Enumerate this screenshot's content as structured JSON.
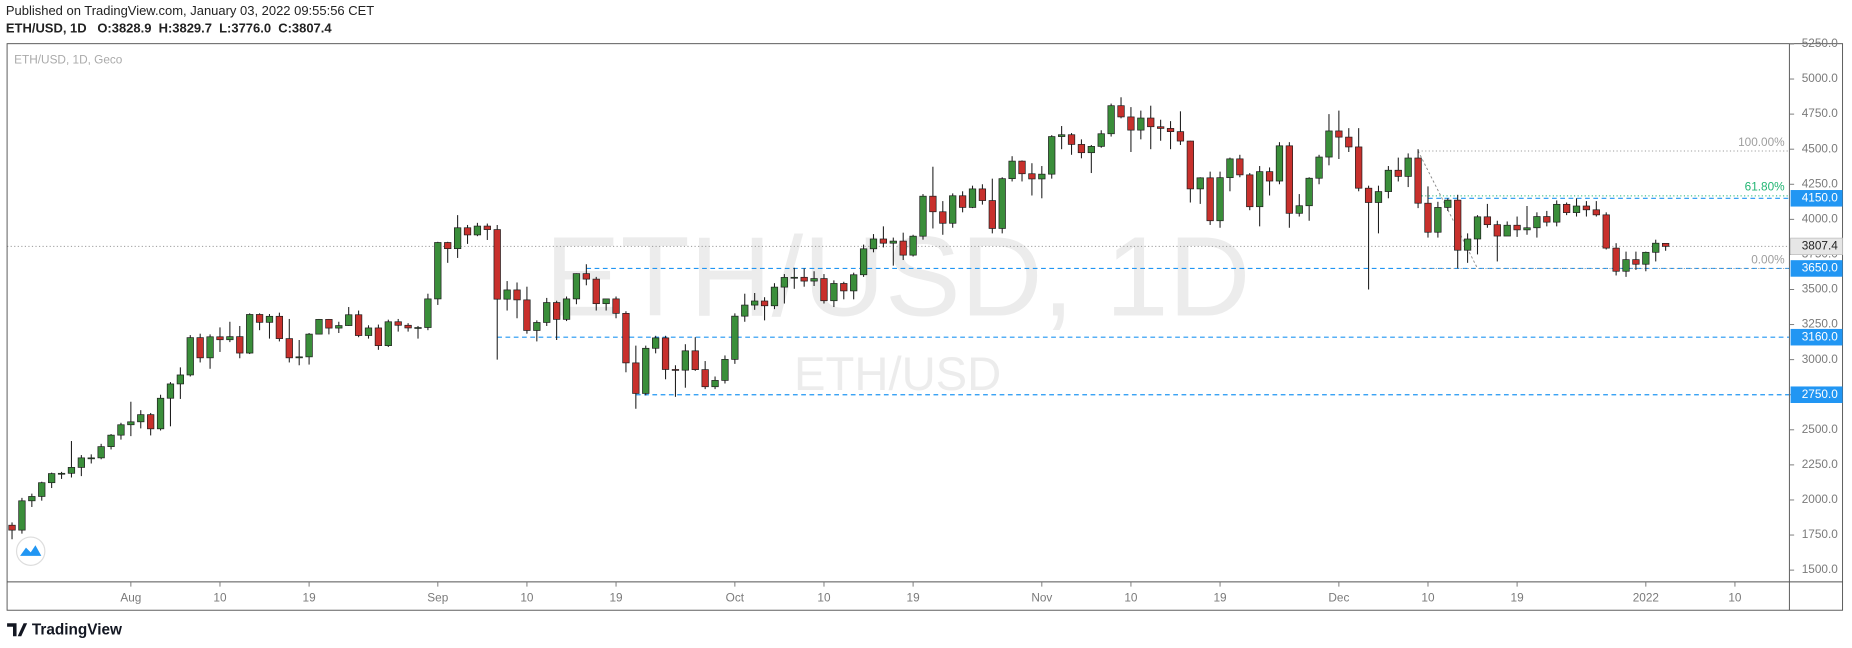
{
  "header": {
    "published": "Published on TradingView.com, January 03, 2022 09:55:56 CET",
    "symbol": "ETH/USD, 1D",
    "ohlc": [
      {
        "key": "O:",
        "value": "3828.9"
      },
      {
        "key": "H:",
        "value": "3829.7"
      },
      {
        "key": "L:",
        "value": "3776.0"
      },
      {
        "key": "C:",
        "value": "3807.4"
      }
    ]
  },
  "chart_data": {
    "type": "candlestick",
    "legend": "ETH/USD, 1D, Geco",
    "watermark": "ETH/USD, 1D",
    "watermark_sub": "ETH/USD",
    "open": [
      1820,
      1785,
      1994,
      2025,
      2123,
      2188,
      2190,
      2232,
      2300,
      2300,
      2380,
      2462,
      2536,
      2557,
      2608,
      2507,
      2725,
      2827,
      2891,
      3157,
      3013,
      3163,
      3142,
      3164,
      3047,
      3322,
      3266,
      3309,
      3150,
      3013,
      3020,
      3182,
      3287,
      3225,
      3243,
      3320,
      3172,
      3226,
      3100,
      3270,
      3245,
      3226,
      3229,
      3433,
      3835,
      3791,
      3940,
      3889,
      3952,
      3927,
      3431,
      3497,
      3426,
      3208,
      3265,
      3407,
      3287,
      3433,
      3613,
      3574,
      3399,
      3433,
      3330,
      2977,
      2759,
      3081,
      3155,
      2930,
      2925,
      3063,
      2929,
      2807,
      2852,
      3002,
      3310,
      3389,
      3418,
      3384,
      3517,
      3586,
      3587,
      3560,
      3578,
      3420,
      3543,
      3490,
      3605,
      3790,
      3860,
      3830,
      3845,
      3745,
      3880,
      4165,
      4054,
      3972,
      4168,
      4085,
      4217,
      4134,
      3935,
      4290,
      4415,
      4325,
      4288,
      4322,
      4590,
      4603,
      4534,
      4475,
      4520,
      4610,
      4810,
      4730,
      4636,
      4722,
      4660,
      4648,
      4625,
      4558,
      4217,
      4296,
      3990,
      4297,
      4431,
      4317,
      4090,
      4340,
      4273,
      4524,
      4043,
      4097,
      4293,
      4444,
      4630,
      4586,
      4516,
      4222,
      4120,
      4198,
      4350,
      4306,
      4437,
      4115,
      3908,
      4085,
      4137,
      3780,
      3860,
      4018,
      3962,
      3881,
      3958,
      3925,
      3940,
      4020,
      3980,
      4107,
      4048,
      4095,
      4068,
      4032,
      3795,
      3630,
      3713,
      3680,
      3765,
      3828.9
    ],
    "high": [
      1840,
      2015,
      2045,
      2130,
      2195,
      2200,
      2420,
      2320,
      2325,
      2400,
      2470,
      2550,
      2700,
      2640,
      2620,
      2750,
      2840,
      2945,
      3175,
      3185,
      3180,
      3230,
      3270,
      3240,
      3330,
      3330,
      3325,
      3335,
      3290,
      3140,
      3190,
      3290,
      3290,
      3270,
      3375,
      3350,
      3245,
      3250,
      3285,
      3290,
      3260,
      3240,
      3470,
      3840,
      3840,
      4030,
      3960,
      3975,
      3970,
      3960,
      3560,
      3550,
      3520,
      3280,
      3440,
      3420,
      3450,
      3615,
      3680,
      3590,
      3430,
      3450,
      3345,
      3100,
      3100,
      3170,
      3170,
      2960,
      3110,
      3160,
      2990,
      2880,
      3030,
      3330,
      3470,
      3475,
      3445,
      3545,
      3610,
      3655,
      3650,
      3630,
      3610,
      3565,
      3555,
      3620,
      3820,
      3895,
      3950,
      3870,
      3905,
      3890,
      4180,
      4375,
      4130,
      4185,
      4200,
      4240,
      4250,
      4290,
      4300,
      4450,
      4420,
      4400,
      4380,
      4600,
      4665,
      4615,
      4570,
      4530,
      4635,
      4825,
      4870,
      4800,
      4775,
      4810,
      4710,
      4700,
      4770,
      4560,
      4300,
      4340,
      4340,
      4440,
      4460,
      4330,
      4380,
      4370,
      4550,
      4550,
      4180,
      4300,
      4460,
      4750,
      4775,
      4650,
      4650,
      4240,
      4240,
      4380,
      4440,
      4470,
      4500,
      4235,
      4125,
      4150,
      4175,
      3900,
      4030,
      4110,
      3990,
      3985,
      4020,
      4095,
      4050,
      4060,
      4135,
      4120,
      4150,
      4130,
      4130,
      4050,
      3830,
      3770,
      3770,
      3770,
      3855,
      3829.7
    ],
    "low": [
      1720,
      1760,
      1950,
      1995,
      2085,
      2150,
      2160,
      2170,
      2260,
      2290,
      2360,
      2430,
      2455,
      2510,
      2460,
      2495,
      2525,
      2720,
      2880,
      2980,
      2935,
      3055,
      3125,
      3010,
      3040,
      3210,
      3150,
      3130,
      2980,
      2960,
      2965,
      3180,
      3180,
      3190,
      3240,
      3160,
      3150,
      3070,
      3090,
      3200,
      3200,
      3150,
      3210,
      3390,
      3690,
      3725,
      3825,
      3880,
      3853,
      3000,
      3350,
      3295,
      3185,
      3130,
      3240,
      3140,
      3275,
      3395,
      3530,
      3350,
      3350,
      3295,
      2910,
      2650,
      2745,
      3045,
      2860,
      2735,
      2800,
      2920,
      2790,
      2790,
      2830,
      2970,
      3270,
      3355,
      3280,
      3360,
      3400,
      3505,
      3520,
      3525,
      3400,
      3375,
      3430,
      3430,
      3590,
      3765,
      3800,
      3670,
      3710,
      3735,
      3855,
      3935,
      3890,
      3940,
      4050,
      4080,
      4105,
      3900,
      3900,
      4270,
      4270,
      4170,
      4150,
      4290,
      4500,
      4460,
      4435,
      4330,
      4510,
      4590,
      4720,
      4480,
      4570,
      4500,
      4560,
      4500,
      4530,
      4120,
      4110,
      3960,
      3940,
      4200,
      4300,
      4065,
      3950,
      4170,
      4250,
      3940,
      4020,
      3990,
      4250,
      4385,
      4430,
      4480,
      4200,
      3500,
      3900,
      4150,
      4270,
      4230,
      4080,
      3870,
      3870,
      4060,
      3650,
      3690,
      3750,
      3940,
      3700,
      3890,
      3875,
      3890,
      3870,
      3950,
      3950,
      4030,
      4020,
      4020,
      4020,
      3785,
      3600,
      3590,
      3640,
      3630,
      3700,
      3776.0
    ],
    "close": [
      1785,
      1994,
      2025,
      2123,
      2188,
      2190,
      2232,
      2300,
      2300,
      2380,
      2462,
      2536,
      2557,
      2608,
      2507,
      2725,
      2827,
      2891,
      3157,
      3013,
      3163,
      3142,
      3164,
      3047,
      3322,
      3266,
      3309,
      3150,
      3013,
      3020,
      3182,
      3287,
      3225,
      3243,
      3320,
      3172,
      3226,
      3100,
      3270,
      3245,
      3226,
      3229,
      3433,
      3835,
      3791,
      3940,
      3889,
      3952,
      3927,
      3431,
      3497,
      3426,
      3208,
      3265,
      3407,
      3287,
      3433,
      3613,
      3574,
      3399,
      3433,
      3330,
      2977,
      2759,
      3081,
      3155,
      2930,
      2925,
      3063,
      2929,
      2807,
      2852,
      3002,
      3310,
      3389,
      3418,
      3384,
      3517,
      3586,
      3587,
      3560,
      3578,
      3420,
      3543,
      3490,
      3605,
      3790,
      3860,
      3830,
      3845,
      3745,
      3880,
      4165,
      4054,
      3972,
      4168,
      4085,
      4217,
      4134,
      3935,
      4290,
      4415,
      4325,
      4288,
      4322,
      4590,
      4603,
      4534,
      4475,
      4520,
      4610,
      4810,
      4730,
      4636,
      4722,
      4660,
      4648,
      4625,
      4558,
      4217,
      4296,
      3990,
      4297,
      4431,
      4317,
      4090,
      4340,
      4273,
      4524,
      4043,
      4097,
      4293,
      4444,
      4630,
      4586,
      4516,
      4222,
      4120,
      4198,
      4350,
      4306,
      4437,
      4115,
      3908,
      4085,
      4137,
      3780,
      3860,
      4018,
      3962,
      3881,
      3958,
      3925,
      3940,
      4020,
      3980,
      4107,
      4048,
      4095,
      4068,
      4032,
      3795,
      3630,
      3713,
      3680,
      3765,
      3830,
      3807.4
    ],
    "up_color": "#3a8e3a",
    "down_color": "#c8302c",
    "wick_color": "#1e1e1e",
    "xlim": [
      -0.5,
      179.5
    ],
    "xticks": [
      {
        "value": 12,
        "label": "Aug"
      },
      {
        "value": 21,
        "label": "10"
      },
      {
        "value": 30,
        "label": "19"
      },
      {
        "value": 43,
        "label": "Sep"
      },
      {
        "value": 52,
        "label": "10"
      },
      {
        "value": 61,
        "label": "19"
      },
      {
        "value": 73,
        "label": "Oct"
      },
      {
        "value": 82,
        "label": "10"
      },
      {
        "value": 91,
        "label": "19"
      },
      {
        "value": 104,
        "label": "Nov"
      },
      {
        "value": 113,
        "label": "10"
      },
      {
        "value": 122,
        "label": "19"
      },
      {
        "value": 134,
        "label": "Dec"
      },
      {
        "value": 143,
        "label": "10"
      },
      {
        "value": 152,
        "label": "19"
      },
      {
        "value": 165,
        "label": "2022"
      },
      {
        "value": 174,
        "label": "10"
      }
    ],
    "ylim": [
      1416,
      5252
    ],
    "yticks": [
      {
        "value": 1500,
        "label": "1500.0"
      },
      {
        "value": 1750,
        "label": "1750.0"
      },
      {
        "value": 2000,
        "label": "2000.0"
      },
      {
        "value": 2250,
        "label": "2250.0"
      },
      {
        "value": 2500,
        "label": "2500.0"
      },
      {
        "value": 2750,
        "label": "2750.0"
      },
      {
        "value": 3000,
        "label": "3000.0"
      },
      {
        "value": 3250,
        "label": "3250.0"
      },
      {
        "value": 3500,
        "label": "3500.0"
      },
      {
        "value": 3750,
        "label": "3750.0"
      },
      {
        "value": 4000,
        "label": "4000.0"
      },
      {
        "value": 4250,
        "label": "4250.0"
      },
      {
        "value": 4500,
        "label": "4500.0"
      },
      {
        "value": 4750,
        "label": "4750.0"
      },
      {
        "value": 5000,
        "label": "5000.0"
      },
      {
        "value": 5250,
        "label": "5250.0"
      }
    ],
    "grid": false,
    "last_price": 3807.4,
    "levels": [
      {
        "value": 4150,
        "label": "4150.0",
        "from": 143
      },
      {
        "value": 3650,
        "label": "3650.0",
        "from": 58
      },
      {
        "value": 3160,
        "label": "3160.0",
        "from": 49
      },
      {
        "value": 2750,
        "label": "2750.0",
        "from": 63
      }
    ],
    "level_color": "#2196f3",
    "fib": {
      "high": {
        "x": 142,
        "y": 4487
      },
      "low": {
        "x": 148,
        "y": 3650
      },
      "levels": [
        {
          "value": 100,
          "label": "100.00%",
          "color": "#9e9e9e"
        },
        {
          "value": 61.8,
          "label": "61.80%",
          "color": "#22b573"
        },
        {
          "value": 0,
          "label": "0.00%",
          "color": "#9e9e9e"
        }
      ]
    }
  },
  "footer": {
    "brand": "TradingView"
  }
}
